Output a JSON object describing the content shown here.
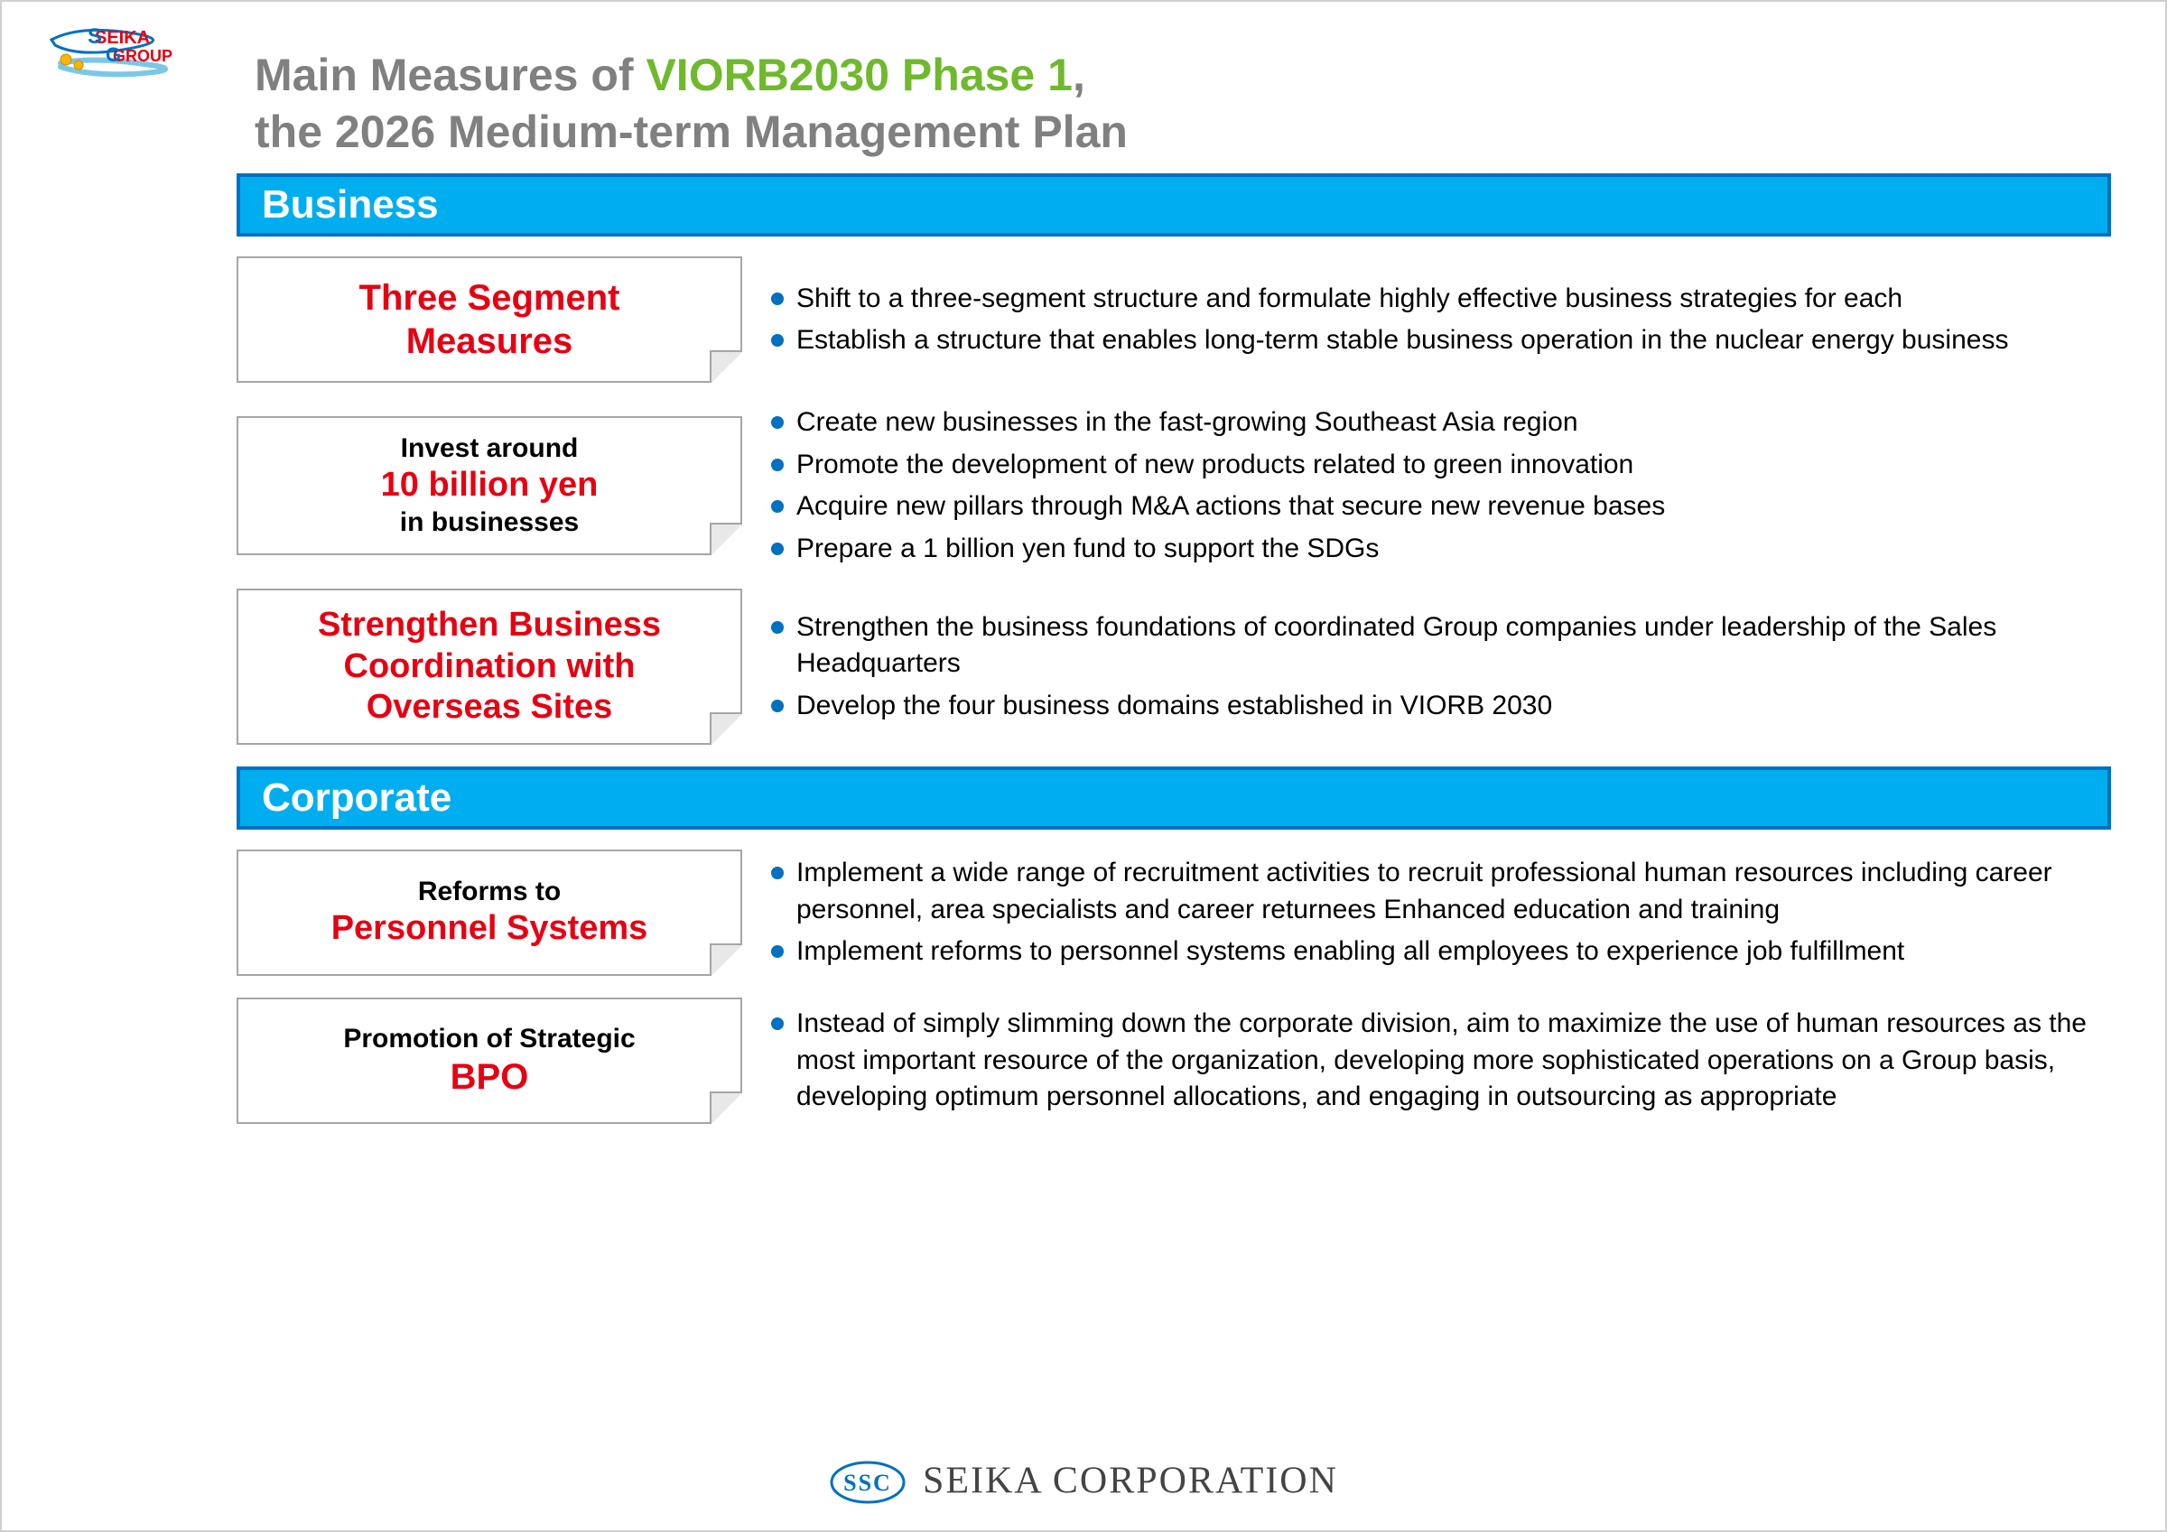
{
  "colors": {
    "title_gray": "#808080",
    "title_green": "#6fb92c",
    "bar_fill": "#00aeef",
    "bar_border": "#0070c0",
    "accent_red": "#e60012",
    "bullet_blue": "#0070c0",
    "card_border": "#a6a6a6"
  },
  "logo_top": {
    "line1": "SEIKA",
    "line2": "GROUP"
  },
  "title": {
    "prefix": "Main Measures of ",
    "highlight": "VIORB2030 Phase 1",
    "suffix": ",",
    "line2": "the 2026 Medium-term Management Plan"
  },
  "sections": {
    "business": {
      "label": "Business",
      "rows": [
        {
          "card_lines": [
            {
              "text": "Three Segment",
              "cls": "red-big"
            },
            {
              "text": "Measures",
              "cls": "red-big"
            }
          ],
          "bullets": [
            "Shift to a three-segment structure and formulate highly effective business strategies for each",
            "Establish a structure that enables long-term stable business operation in the nuclear energy business"
          ]
        },
        {
          "card_lines": [
            {
              "text": "Invest around",
              "cls": "black-med"
            },
            {
              "text": "10 billion yen",
              "cls": "red-med"
            },
            {
              "text": "in businesses",
              "cls": "black-med"
            }
          ],
          "bullets": [
            "Create new businesses in the fast-growing Southeast Asia region",
            "Promote the development of new products related to green innovation",
            "Acquire new pillars through M&A actions that secure new revenue bases",
            "Prepare a 1 billion yen fund to support the SDGs"
          ]
        },
        {
          "card_lines": [
            {
              "text": "Strengthen Business",
              "cls": "red-med"
            },
            {
              "text": "Coordination with",
              "cls": "red-med"
            },
            {
              "text": "Overseas Sites",
              "cls": "red-med"
            }
          ],
          "bullets": [
            "Strengthen the business foundations of coordinated Group companies under leadership of the Sales Headquarters",
            "Develop the four business domains established in VIORB 2030"
          ]
        }
      ]
    },
    "corporate": {
      "label": "Corporate",
      "rows": [
        {
          "card_lines": [
            {
              "text": "Reforms to",
              "cls": "black-med"
            },
            {
              "text": "Personnel Systems",
              "cls": "red-med"
            }
          ],
          "bullets": [
            "Implement a wide range of recruitment activities to recruit professional human resources including career personnel, area specialists and career returnees Enhanced education and training",
            "Implement reforms to personnel systems enabling all employees to experience job fulfillment"
          ]
        },
        {
          "card_lines": [
            {
              "text": "Promotion of Strategic",
              "cls": "black-med"
            },
            {
              "text": "BPO",
              "cls": "red-big"
            }
          ],
          "bullets": [
            "Instead of simply slimming down the corporate division, aim to maximize the use of human resources as the most important resource of the organization, developing more sophisticated operations on a Group basis, developing optimum personnel allocations, and engaging in outsourcing as appropriate"
          ]
        }
      ]
    }
  },
  "footer": {
    "badge": "SSC",
    "company": "SEIKA CORPORATION"
  }
}
